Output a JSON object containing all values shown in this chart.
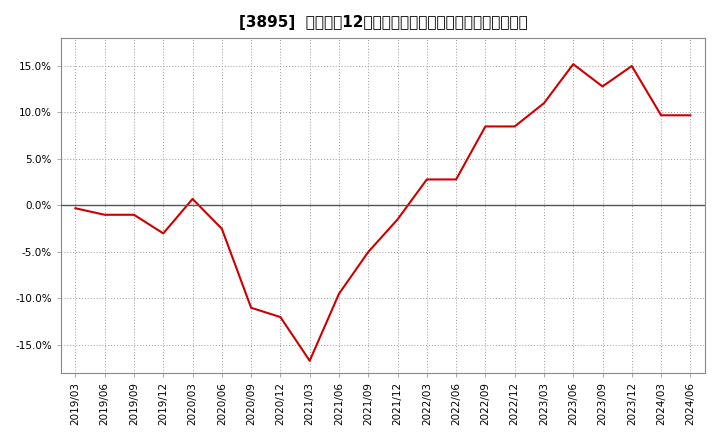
{
  "title": "[3895]  売上高の12か月移動合計の対前年同期増減率の推移",
  "x_labels": [
    "2019/03",
    "2019/06",
    "2019/09",
    "2019/12",
    "2020/03",
    "2020/06",
    "2020/09",
    "2020/12",
    "2021/03",
    "2021/06",
    "2021/09",
    "2021/12",
    "2022/03",
    "2022/06",
    "2022/09",
    "2022/12",
    "2023/03",
    "2023/06",
    "2023/09",
    "2023/12",
    "2024/03",
    "2024/06"
  ],
  "y_values": [
    -0.003,
    -0.01,
    -0.01,
    -0.03,
    0.007,
    -0.025,
    -0.11,
    -0.12,
    -0.167,
    -0.095,
    -0.05,
    -0.015,
    0.028,
    0.028,
    0.085,
    0.085,
    0.11,
    0.152,
    0.128,
    0.15,
    0.097,
    0.097
  ],
  "line_color": "#cc0000",
  "bg_color": "#ffffff",
  "plot_bg_color": "#ffffff",
  "grid_color": "#999999",
  "zero_line_color": "#555555",
  "ylim": [
    -0.18,
    0.18
  ],
  "yticks": [
    -0.15,
    -0.1,
    -0.05,
    0.0,
    0.05,
    0.1,
    0.15
  ],
  "ytick_labels": [
    "-15.0%",
    "-10.0%",
    "-5.0%",
    "0.0%",
    "5.0%",
    "10.0%",
    "15.0%"
  ],
  "title_fontsize": 11,
  "tick_fontsize": 7.5,
  "line_width": 1.5
}
